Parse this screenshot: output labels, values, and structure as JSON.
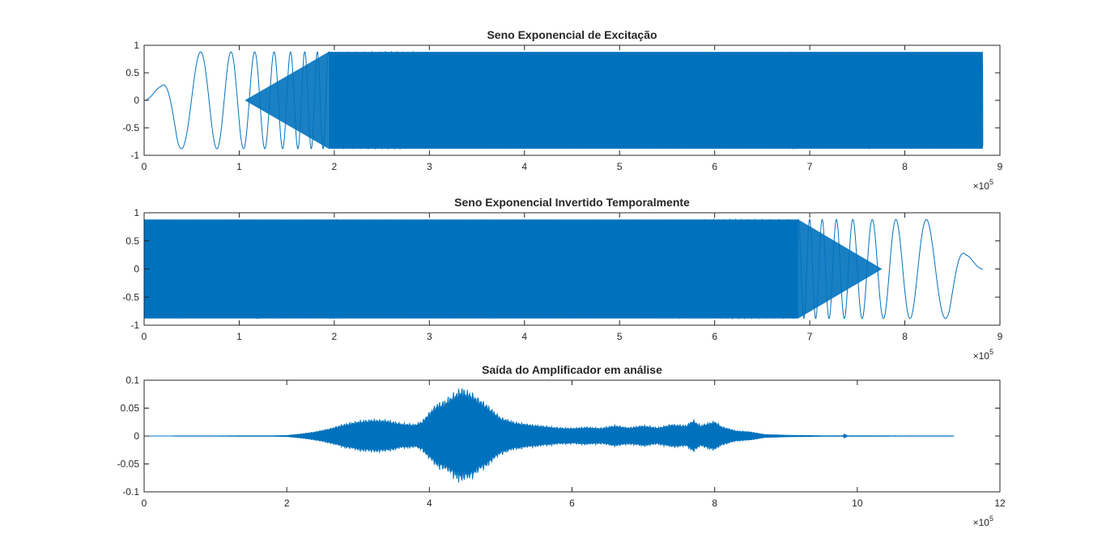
{
  "figure": {
    "background": "#ffffff",
    "line_color": "#0072BD",
    "axes_color": "#262626"
  },
  "chart_data": [
    {
      "type": "line",
      "title": "Seno Exponencial de Excitação",
      "xlim": [
        0,
        9
      ],
      "ylim": [
        -1,
        1
      ],
      "x_multiplier_base": "10",
      "x_multiplier_exp": "5",
      "xticks": [
        "0",
        "1",
        "2",
        "3",
        "4",
        "5",
        "6",
        "7",
        "8",
        "9"
      ],
      "yticks": [
        "1",
        "0.5",
        "0",
        "-0.5",
        "-1"
      ],
      "signal": {
        "kind": "sweep",
        "direction": "forward",
        "amplitude": 0.88,
        "x_start": 0.0,
        "x_end": 8.82,
        "note_fill_from": 2.4
      }
    },
    {
      "type": "line",
      "title": "Seno Exponencial Invertido Temporalmente",
      "xlim": [
        0,
        9
      ],
      "ylim": [
        -1,
        1
      ],
      "x_multiplier_base": "10",
      "x_multiplier_exp": "5",
      "xticks": [
        "0",
        "1",
        "2",
        "3",
        "4",
        "5",
        "6",
        "7",
        "8",
        "9"
      ],
      "yticks": [
        "1",
        "0.5",
        "0",
        "-0.5",
        "-1"
      ],
      "signal": {
        "kind": "sweep",
        "direction": "reversed",
        "amplitude": 0.88,
        "x_start": 0.0,
        "x_end": 8.82
      }
    },
    {
      "type": "line",
      "title": "Saída do Amplificador em análise",
      "xlim": [
        0,
        12
      ],
      "ylim": [
        -0.1,
        0.1
      ],
      "x_multiplier_base": "10",
      "x_multiplier_exp": "5",
      "xticks": [
        "0",
        "2",
        "4",
        "6",
        "8",
        "10",
        "12"
      ],
      "yticks": [
        "0.1",
        "0.05",
        "0",
        "-0.05",
        "-0.1"
      ],
      "signal": {
        "kind": "envelope",
        "x_end": 11.35,
        "envelope": [
          [
            0.0,
            0.0
          ],
          [
            1.8,
            0.0005
          ],
          [
            2.0,
            0.001
          ],
          [
            2.2,
            0.004
          ],
          [
            2.4,
            0.008
          ],
          [
            2.6,
            0.014
          ],
          [
            2.8,
            0.022
          ],
          [
            3.0,
            0.028
          ],
          [
            3.2,
            0.031
          ],
          [
            3.4,
            0.03
          ],
          [
            3.6,
            0.024
          ],
          [
            3.8,
            0.022
          ],
          [
            3.9,
            0.028
          ],
          [
            4.0,
            0.045
          ],
          [
            4.1,
            0.06
          ],
          [
            4.2,
            0.065
          ],
          [
            4.3,
            0.075
          ],
          [
            4.45,
            0.09
          ],
          [
            4.6,
            0.08
          ],
          [
            4.8,
            0.06
          ],
          [
            5.0,
            0.035
          ],
          [
            5.2,
            0.026
          ],
          [
            5.4,
            0.022
          ],
          [
            5.6,
            0.019
          ],
          [
            5.8,
            0.016
          ],
          [
            6.0,
            0.015
          ],
          [
            6.2,
            0.017
          ],
          [
            6.4,
            0.015
          ],
          [
            6.6,
            0.02
          ],
          [
            6.8,
            0.016
          ],
          [
            7.0,
            0.02
          ],
          [
            7.2,
            0.016
          ],
          [
            7.4,
            0.022
          ],
          [
            7.6,
            0.02
          ],
          [
            7.7,
            0.03
          ],
          [
            7.8,
            0.02
          ],
          [
            8.0,
            0.028
          ],
          [
            8.1,
            0.018
          ],
          [
            8.3,
            0.01
          ],
          [
            8.5,
            0.008
          ],
          [
            8.7,
            0.003
          ],
          [
            9.0,
            0.0015
          ],
          [
            9.5,
            0.0005
          ],
          [
            9.8,
            0.0005
          ],
          [
            9.82,
            0.004
          ],
          [
            9.86,
            0.0005
          ],
          [
            10.5,
            0.0003
          ],
          [
            11.35,
            0.0002
          ]
        ]
      }
    }
  ]
}
